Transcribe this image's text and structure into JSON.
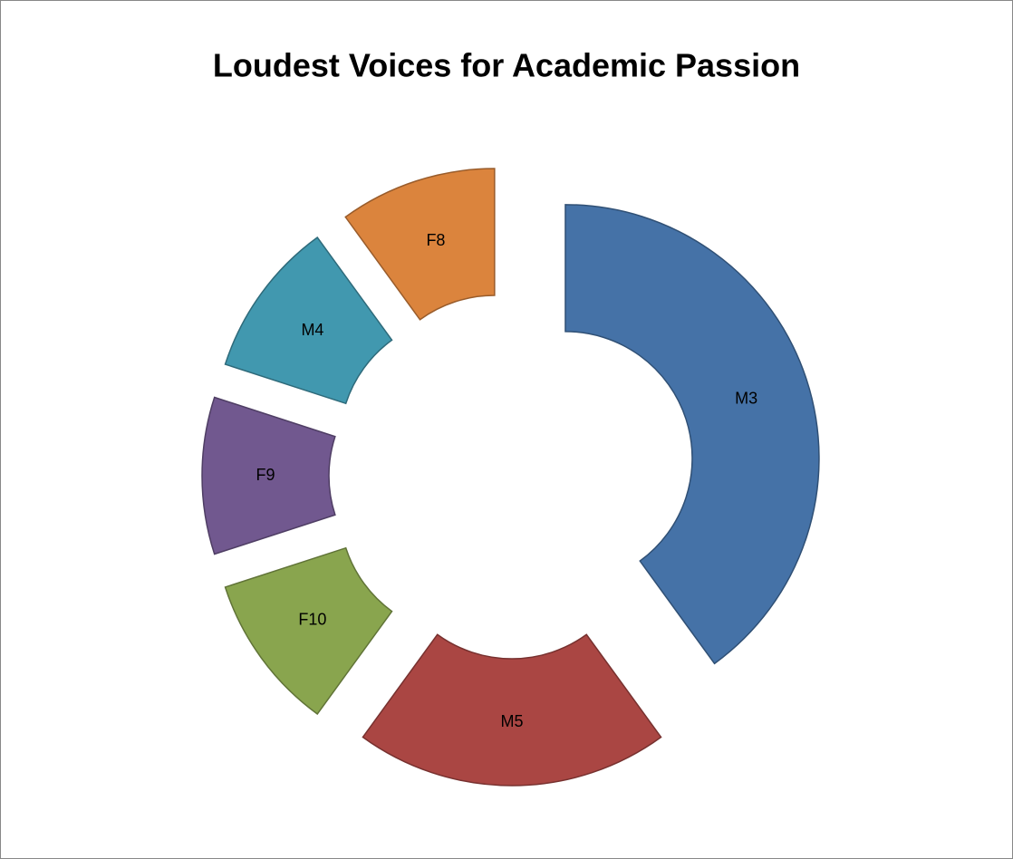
{
  "chart_data": {
    "type": "donut",
    "title": "Loudest Voices for Academic Passion",
    "categories": [
      "M3",
      "M5",
      "F10",
      "F9",
      "M4",
      "F8"
    ],
    "values": [
      40,
      20,
      10,
      10,
      10,
      10
    ],
    "colors": [
      "#4572a7",
      "#aa4643",
      "#89a54e",
      "#71588f",
      "#4198af",
      "#db843d"
    ],
    "exploded": true
  }
}
